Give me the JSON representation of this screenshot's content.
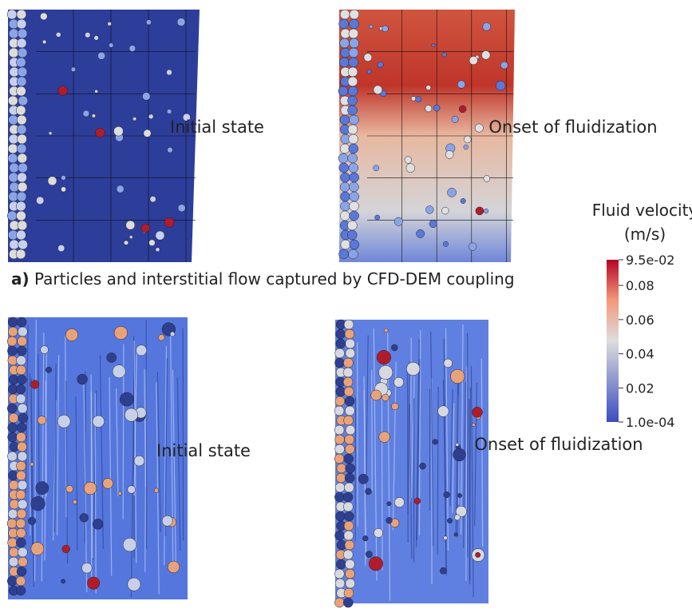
{
  "panels": [
    {
      "label": "Initial state"
    },
    {
      "label": "Onset of fluidization"
    },
    {
      "label": "Initial state"
    },
    {
      "label": "Onset of fluidization"
    }
  ],
  "caption": {
    "label": "a)",
    "text": "Particles and interstitial flow captured by CFD-DEM coupling"
  },
  "colorbar": {
    "title": "Fluid velocity",
    "unit": "(m/s)",
    "ticks": [
      {
        "value": 0.095,
        "label": "9.5e-02"
      },
      0.08,
      0.06,
      0.04,
      0.02,
      {
        "value": 0.0001,
        "label": "1.0e-04"
      }
    ]
  }
}
